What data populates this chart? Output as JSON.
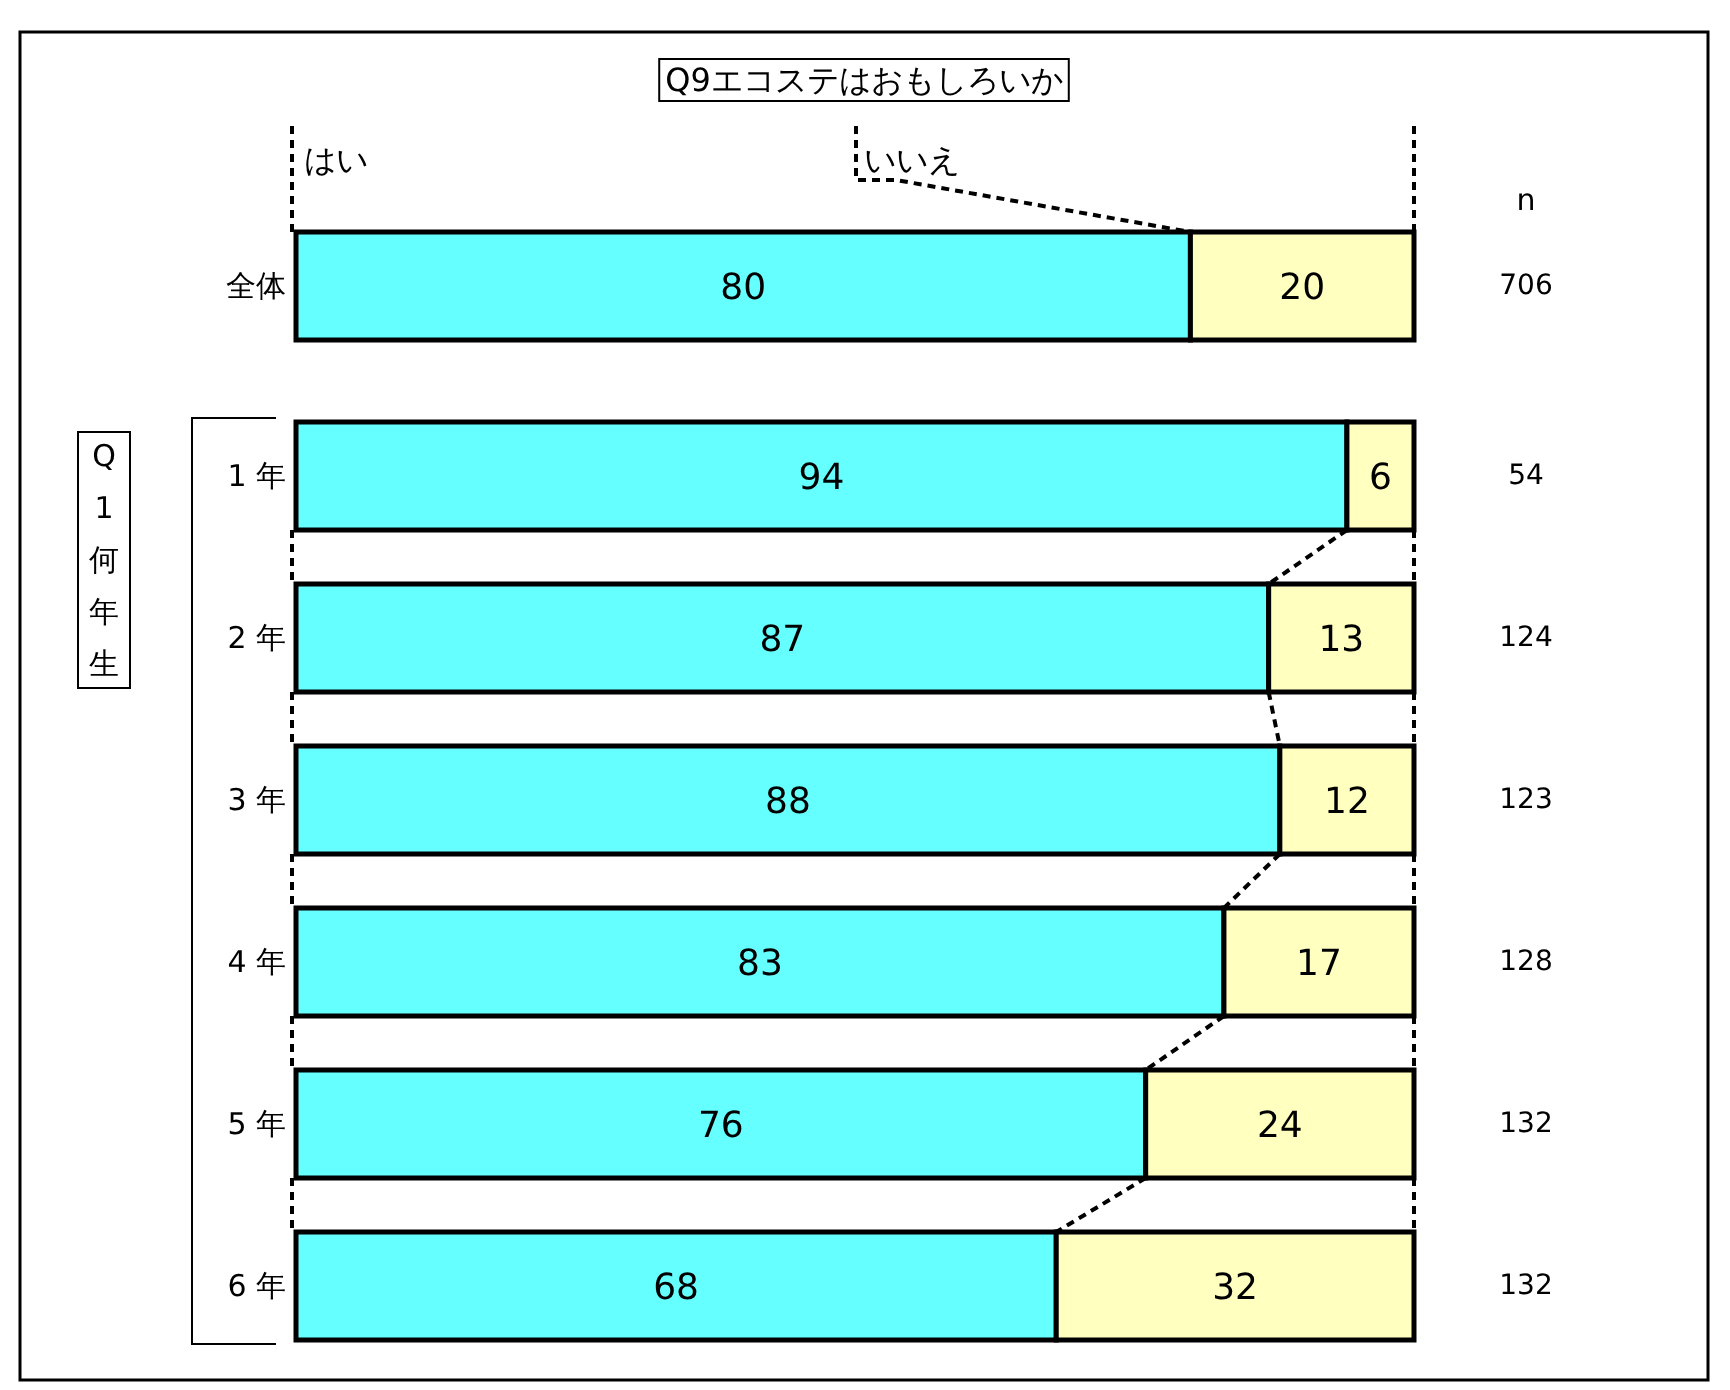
{
  "chart_data": {
    "type": "bar",
    "orientation": "horizontal",
    "stacked": true,
    "data_labels": true,
    "title": "Q9エコステはおもしろいか",
    "ylabel": "Q1何年生",
    "legend": "top",
    "tick_labels": "y",
    "xlim": [
      0,
      100
    ],
    "categories": [
      "全体",
      "1 年",
      "2 年",
      "3 年",
      "4 年",
      "5 年",
      "6 年"
    ],
    "series": [
      {
        "name": "はい",
        "color": "#66ffff",
        "values": [
          80,
          94,
          87,
          88,
          83,
          76,
          68
        ]
      },
      {
        "name": "いいえ",
        "color": "#ffffc0",
        "values": [
          20,
          6,
          13,
          12,
          17,
          24,
          32
        ]
      }
    ],
    "annotations": [
      "n",
      "706",
      "54",
      "124",
      "123",
      "128",
      "132",
      "132"
    ]
  }
}
